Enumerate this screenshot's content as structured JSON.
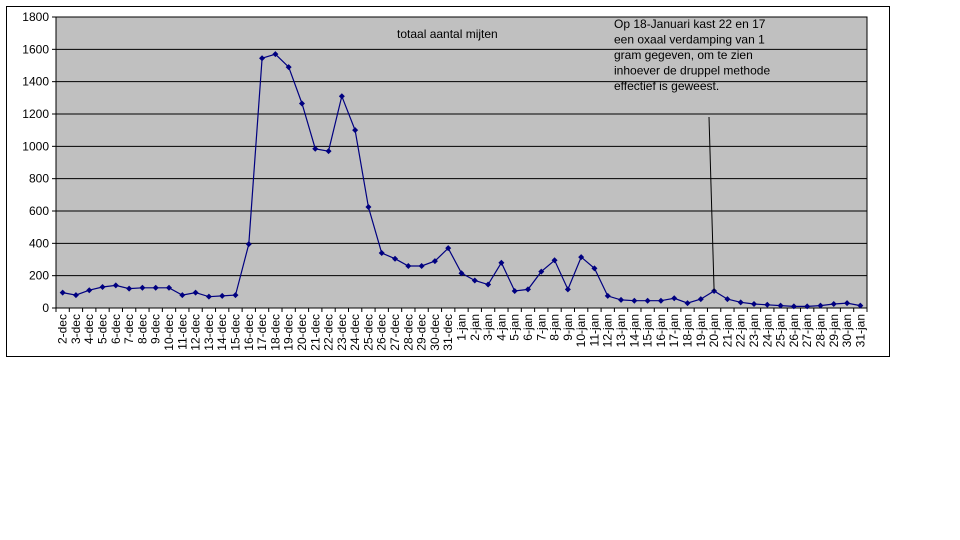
{
  "chart_data": {
    "type": "line",
    "title": "totaal aantal mijten",
    "annotation": [
      "Op 18-Januari kast 22 en 17",
      "een oxaal verdamping van 1",
      "gram gegeven, om te zien",
      "inhoever de druppel methode",
      "effectief is geweest."
    ],
    "ylim": [
      0,
      1800
    ],
    "yticks": [
      0,
      200,
      400,
      600,
      800,
      1000,
      1200,
      1400,
      1600,
      1800
    ],
    "grid": true,
    "legend": "none",
    "colors": {
      "line": "#000080",
      "plot_bg": "#c0c0c0",
      "grid": "#000000"
    },
    "categories": [
      "2-dec",
      "3-dec",
      "4-dec",
      "5-dec",
      "6-dec",
      "7-dec",
      "8-dec",
      "9-dec",
      "10-dec",
      "11-dec",
      "12-dec",
      "13-dec",
      "14-dec",
      "15-dec",
      "16-dec",
      "17-dec",
      "18-dec",
      "19-dec",
      "20-dec",
      "21-dec",
      "22-dec",
      "23-dec",
      "24-dec",
      "25-dec",
      "26-dec",
      "27-dec",
      "28-dec",
      "29-dec",
      "30-dec",
      "31-dec",
      "1-jan",
      "2-jan",
      "3-jan",
      "4-jan",
      "5-jan",
      "6-jan",
      "7-jan",
      "8-jan",
      "9-jan",
      "10-jan",
      "11-jan",
      "12-jan",
      "13-jan",
      "14-jan",
      "15-jan",
      "16-jan",
      "17-jan",
      "18-jan",
      "19-jan",
      "20-jan",
      "21-jan",
      "22-jan",
      "23-jan",
      "24-jan",
      "25-jan",
      "26-jan",
      "27-jan",
      "28-jan",
      "29-jan",
      "30-jan",
      "31-jan"
    ],
    "series": [
      {
        "values": [
          95,
          80,
          110,
          130,
          140,
          120,
          125,
          125,
          125,
          80,
          95,
          70,
          75,
          80,
          395,
          1545,
          1570,
          1490,
          1265,
          985,
          970,
          1310,
          1100,
          625,
          340,
          305,
          260,
          260,
          290,
          370,
          215,
          170,
          145,
          280,
          105,
          115,
          225,
          295,
          115,
          315,
          245,
          75,
          50,
          45,
          45,
          45,
          60,
          30,
          55,
          105,
          55,
          35,
          25,
          20,
          15,
          10,
          10,
          15,
          25,
          30,
          15
        ]
      }
    ]
  }
}
